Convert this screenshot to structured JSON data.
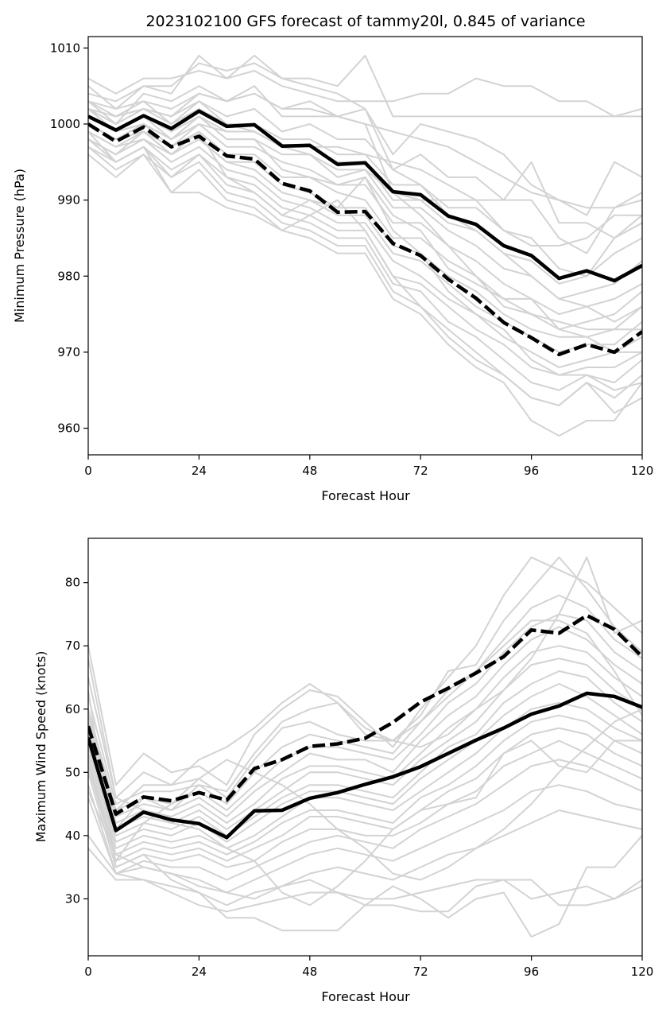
{
  "chart_data": [
    {
      "type": "line",
      "title": "2023102100 GFS forecast of tammy20l, 0.845 of variance",
      "xlabel": "Forecast Hour",
      "ylabel": "Minimum Pressure (hPa)",
      "xlim": [
        0,
        120
      ],
      "ylim": [
        956.5,
        1011.5
      ],
      "xticks": [
        0,
        24,
        48,
        72,
        96,
        120
      ],
      "yticks": [
        960,
        970,
        980,
        990,
        1000,
        1010
      ],
      "x": [
        0,
        6,
        12,
        18,
        24,
        30,
        36,
        42,
        48,
        54,
        60,
        66,
        72,
        78,
        84,
        90,
        96,
        102,
        108,
        114,
        120
      ],
      "ensemble_color": "#d3d3d3",
      "ensemble": [
        [
          1006,
          1004,
          1006,
          1006,
          1007,
          1006,
          1007,
          1005,
          1004,
          1003,
          1003,
          1003,
          1004,
          1004,
          1006,
          1005,
          1005,
          1003,
          1003,
          1001,
          1002
        ],
        [
          1004,
          1003,
          1005,
          1004,
          1009,
          1006,
          1009,
          1006,
          1006,
          1005,
          1009,
          1001,
          1001,
          1001,
          1001,
          1001,
          1001,
          1001,
          1001,
          1001,
          1001
        ],
        [
          1003,
          1002,
          1003,
          1002,
          1004,
          1003,
          1004,
          1002,
          1003,
          1001,
          1002,
          996,
          1000,
          999,
          998,
          996,
          992,
          990,
          988,
          995,
          993
        ],
        [
          1002,
          1001,
          1002,
          1001,
          1003,
          1001,
          1002,
          999,
          1000,
          998,
          998,
          994,
          996,
          993,
          993,
          990,
          990,
          985,
          983,
          989,
          991
        ],
        [
          1002,
          1000,
          1002,
          1000,
          1002,
          1000,
          1000,
          998,
          998,
          996,
          996,
          992,
          992,
          989,
          989,
          986,
          985,
          981,
          980,
          985,
          988
        ],
        [
          1001,
          999,
          1001,
          999,
          1001,
          999,
          999,
          997,
          997,
          995,
          995,
          990,
          990,
          987,
          986,
          983,
          982,
          979,
          980,
          983,
          985
        ],
        [
          1001,
          999,
          1000,
          998,
          1001,
          998,
          998,
          996,
          996,
          994,
          994,
          989,
          989,
          986,
          984,
          981,
          980,
          977,
          978,
          979,
          982
        ],
        [
          1000,
          998,
          1000,
          997,
          1000,
          997,
          997,
          995,
          994,
          992,
          992,
          987,
          987,
          984,
          982,
          979,
          977,
          975,
          976,
          977,
          979
        ],
        [
          1000,
          998,
          999,
          997,
          999,
          996,
          996,
          993,
          993,
          991,
          990,
          985,
          985,
          982,
          980,
          977,
          975,
          973,
          974,
          975,
          978
        ],
        [
          999,
          997,
          999,
          996,
          998,
          995,
          995,
          992,
          991,
          989,
          989,
          984,
          983,
          980,
          978,
          975,
          973,
          972,
          972,
          973,
          976
        ],
        [
          999,
          997,
          998,
          996,
          998,
          995,
          994,
          991,
          990,
          988,
          988,
          983,
          982,
          979,
          976,
          974,
          972,
          970,
          971,
          971,
          974
        ],
        [
          998,
          996,
          998,
          995,
          997,
          994,
          993,
          990,
          989,
          987,
          987,
          982,
          980,
          977,
          975,
          972,
          970,
          968,
          969,
          970,
          972
        ],
        [
          998,
          995,
          997,
          994,
          996,
          993,
          992,
          989,
          988,
          986,
          986,
          980,
          979,
          976,
          973,
          971,
          968,
          967,
          968,
          968,
          970
        ],
        [
          997,
          995,
          997,
          993,
          996,
          992,
          991,
          988,
          987,
          985,
          985,
          979,
          978,
          974,
          972,
          969,
          966,
          965,
          967,
          966,
          969
        ],
        [
          997,
          994,
          996,
          993,
          995,
          991,
          990,
          987,
          986,
          984,
          984,
          978,
          976,
          973,
          970,
          967,
          964,
          963,
          966,
          964,
          967
        ],
        [
          996,
          993,
          996,
          991,
          994,
          990,
          989,
          986,
          985,
          983,
          983,
          977,
          975,
          971,
          968,
          966,
          961,
          959,
          961,
          961,
          966
        ],
        [
          999,
          995,
          997,
          991,
          991,
          989,
          988,
          986,
          988,
          990,
          986,
          980,
          976,
          972,
          969,
          967,
          964,
          963,
          966,
          962,
          964
        ],
        [
          1003,
          1000,
          1004,
          1003,
          1005,
          1003,
          1005,
          1001,
          1001,
          1001,
          1000,
          991,
          988,
          984,
          980,
          976,
          975,
          974,
          973,
          973,
          973
        ],
        [
          1005,
          1002,
          1005,
          1005,
          1008,
          1007,
          1008,
          1006,
          1005,
          1004,
          1002,
          994,
          992,
          988,
          986,
          983,
          980,
          977,
          976,
          974,
          976
        ],
        [
          1003,
          1001,
          1003,
          1000,
          1003,
          1000,
          999,
          997,
          996,
          993,
          994,
          991,
          990,
          990,
          990,
          990,
          995,
          987,
          987,
          985,
          987
        ],
        [
          1002,
          999,
          1001,
          998,
          1001,
          998,
          998,
          994,
          993,
          992,
          993,
          988,
          986,
          981,
          979,
          977,
          977,
          973,
          972,
          970,
          970
        ],
        [
          998,
          996,
          999,
          996,
          999,
          993,
          991,
          988,
          990,
          989,
          993,
          986,
          983,
          978,
          975,
          973,
          969,
          967,
          967,
          965,
          966
        ],
        [
          1000,
          998,
          1000,
          998,
          1000,
          999,
          999,
          997,
          997,
          997,
          996,
          995,
          994,
          992,
          990,
          986,
          984,
          984,
          985,
          988,
          988
        ],
        [
          1002,
          1000,
          1002,
          1001,
          1004,
          1003,
          1004,
          1002,
          1002,
          1001,
          1000,
          999,
          998,
          997,
          995,
          993,
          991,
          990,
          989,
          989,
          990
        ]
      ],
      "series": [
        {
          "style": "solid",
          "values": [
            1001,
            999.2,
            1001.1,
            999.4,
            1001.7,
            999.7,
            999.9,
            997.1,
            997.2,
            994.7,
            994.9,
            991.1,
            990.7,
            987.9,
            986.8,
            984.0,
            982.7,
            979.7,
            980.7,
            979.4,
            981.4
          ]
        },
        {
          "style": "dashed",
          "values": [
            1000,
            997.7,
            999.6,
            997.0,
            998.4,
            995.8,
            995.4,
            992.2,
            991.2,
            988.4,
            988.5,
            984.3,
            982.7,
            979.6,
            977.1,
            973.9,
            971.9,
            969.7,
            971.0,
            970.0,
            972.7
          ]
        }
      ]
    },
    {
      "type": "line",
      "title": "",
      "xlabel": "Forecast Hour",
      "ylabel": "Maximum Wind Speed (knots)",
      "xlim": [
        0,
        120
      ],
      "ylim": [
        21,
        87
      ],
      "xticks": [
        0,
        24,
        48,
        72,
        96,
        120
      ],
      "yticks": [
        30,
        40,
        50,
        60,
        70,
        80
      ],
      "x": [
        0,
        6,
        12,
        18,
        24,
        30,
        36,
        42,
        48,
        54,
        60,
        66,
        72,
        78,
        84,
        90,
        96,
        102,
        108,
        114,
        120
      ],
      "ensemble_color": "#d3d3d3",
      "ensemble": [
        [
          70,
          48,
          53,
          50,
          51,
          48,
          56,
          60,
          63,
          62,
          58,
          54,
          60,
          65,
          70,
          78,
          84,
          82,
          80,
          76,
          72
        ],
        [
          65,
          46,
          50,
          48,
          49,
          46,
          52,
          57,
          58,
          56,
          55,
          55,
          59,
          66,
          67,
          74,
          79,
          84,
          79,
          73,
          69
        ],
        [
          62,
          45,
          47,
          47,
          48,
          45,
          50,
          54,
          56,
          55,
          54,
          53,
          58,
          63,
          66,
          71,
          76,
          78,
          76,
          71,
          68
        ],
        [
          60,
          44,
          46,
          45,
          47,
          44,
          48,
          52,
          54,
          54,
          53,
          52,
          56,
          61,
          64,
          69,
          73,
          75,
          74,
          69,
          66
        ],
        [
          58,
          43,
          45,
          44,
          46,
          43,
          47,
          50,
          53,
          52,
          52,
          50,
          55,
          59,
          62,
          67,
          71,
          73,
          71,
          67,
          64
        ],
        [
          57,
          42,
          44,
          43,
          45,
          42,
          45,
          49,
          51,
          51,
          50,
          49,
          53,
          57,
          60,
          65,
          69,
          70,
          69,
          65,
          62
        ],
        [
          56,
          41,
          43,
          42,
          44,
          41,
          44,
          47,
          50,
          50,
          49,
          48,
          52,
          55,
          58,
          63,
          67,
          68,
          67,
          63,
          60
        ],
        [
          55,
          40,
          42,
          41,
          43,
          40,
          43,
          46,
          48,
          48,
          47,
          46,
          50,
          54,
          56,
          61,
          64,
          66,
          65,
          61,
          58
        ],
        [
          54,
          39,
          41,
          40,
          42,
          39,
          42,
          45,
          47,
          47,
          46,
          45,
          49,
          52,
          55,
          59,
          62,
          64,
          62,
          59,
          56
        ],
        [
          53,
          38,
          40,
          39,
          40,
          38,
          40,
          43,
          46,
          46,
          45,
          44,
          47,
          50,
          53,
          57,
          60,
          61,
          60,
          57,
          55
        ],
        [
          52,
          37,
          39,
          38,
          39,
          37,
          39,
          42,
          44,
          44,
          43,
          42,
          46,
          48,
          51,
          55,
          58,
          59,
          58,
          55,
          53
        ],
        [
          51,
          36,
          38,
          37,
          38,
          36,
          38,
          40,
          43,
          43,
          42,
          41,
          44,
          47,
          49,
          53,
          56,
          57,
          56,
          53,
          51
        ],
        [
          50,
          35,
          37,
          36,
          37,
          35,
          36,
          39,
          41,
          41,
          40,
          40,
          42,
          45,
          47,
          51,
          53,
          55,
          53,
          51,
          49
        ],
        [
          48,
          34,
          36,
          35,
          35,
          33,
          35,
          37,
          39,
          40,
          39,
          38,
          41,
          43,
          45,
          48,
          51,
          52,
          51,
          49,
          47
        ],
        [
          46,
          34,
          35,
          34,
          33,
          31,
          33,
          35,
          37,
          38,
          37,
          36,
          38,
          40,
          42,
          44,
          47,
          48,
          47,
          45,
          44
        ],
        [
          40,
          34,
          33,
          32,
          31,
          29,
          31,
          32,
          34,
          35,
          34,
          33,
          35,
          37,
          38,
          40,
          42,
          44,
          43,
          42,
          41
        ],
        [
          38,
          33,
          33,
          31,
          29,
          28,
          29,
          30,
          31,
          31,
          30,
          30,
          31,
          32,
          33,
          33,
          30,
          31,
          32,
          30,
          33
        ],
        [
          68,
          46,
          44,
          42,
          41,
          38,
          36,
          31,
          29,
          32,
          36,
          41,
          44,
          45,
          46,
          53,
          55,
          51,
          50,
          55,
          55
        ],
        [
          63,
          35,
          37,
          33,
          31,
          27,
          27,
          25,
          25,
          25,
          29,
          32,
          30,
          27,
          30,
          31,
          24,
          26,
          35,
          35,
          40
        ],
        [
          59,
          44,
          48,
          48,
          52,
          54,
          57,
          61,
          64,
          61,
          57,
          55,
          54,
          56,
          60,
          63,
          68,
          75,
          84,
          72,
          74
        ],
        [
          55,
          41,
          46,
          44,
          48,
          47,
          53,
          58,
          60,
          61,
          56,
          55,
          58,
          62,
          66,
          70,
          74,
          74,
          72,
          66,
          59
        ],
        [
          52,
          36,
          42,
          45,
          49,
          52,
          50,
          48,
          45,
          41,
          38,
          34,
          33,
          35,
          38,
          41,
          45,
          50,
          54,
          58,
          60
        ],
        [
          47,
          37,
          35,
          34,
          32,
          31,
          30,
          32,
          33,
          31,
          29,
          29,
          28,
          28,
          32,
          33,
          33,
          29,
          29,
          30,
          32
        ]
      ],
      "series": [
        {
          "style": "solid",
          "values": [
            55.5,
            40.8,
            43.7,
            42.5,
            41.9,
            39.7,
            43.9,
            44.0,
            45.9,
            46.8,
            48.1,
            49.3,
            50.9,
            53.0,
            55.1,
            57.0,
            59.2,
            60.5,
            62.5,
            62.0,
            60.3
          ]
        },
        {
          "style": "dashed",
          "values": [
            57.3,
            43.4,
            46.1,
            45.5,
            46.8,
            45.6,
            50.6,
            52.0,
            54.1,
            54.5,
            55.4,
            57.9,
            61.1,
            63.3,
            65.7,
            68.3,
            72.5,
            72.0,
            74.8,
            72.6,
            68.3
          ]
        }
      ]
    }
  ]
}
